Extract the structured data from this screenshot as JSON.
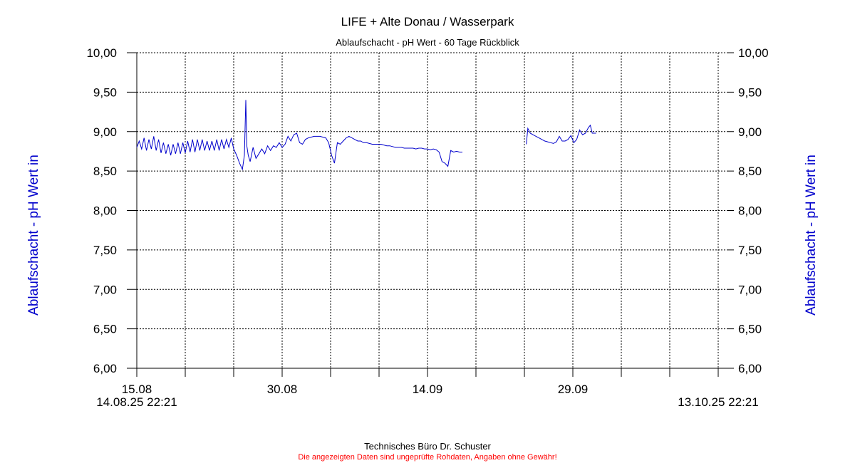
{
  "chart_data": {
    "type": "line",
    "title": "LIFE + Alte Donau / Wasserpark",
    "subtitle": "Ablaufschacht - pH Wert - 60 Tage Rückblick",
    "ylabel": "Ablaufschacht - pH Wert in",
    "ylim": [
      6.0,
      10.0
    ],
    "y_ticks": [
      "10,00",
      "9,50",
      "9,00",
      "8,50",
      "8,00",
      "7,50",
      "7,00",
      "6,50",
      "6,00"
    ],
    "y_tick_values": [
      10.0,
      9.5,
      9.0,
      8.5,
      8.0,
      7.5,
      7.0,
      6.5,
      6.0
    ],
    "xlim_days": [
      0,
      60
    ],
    "x_tick_labels": [
      {
        "label": "15.08",
        "day": 0
      },
      {
        "label": "30.08",
        "day": 15
      },
      {
        "label": "14.09",
        "day": 30
      },
      {
        "label": "29.09",
        "day": 45
      }
    ],
    "x_tick_days": [
      0,
      5,
      10,
      15,
      20,
      25,
      30,
      35,
      40,
      45,
      50,
      55,
      60
    ],
    "x_start_label": "14.08.25 22:21",
    "x_end_label": "13.10.25 22:21",
    "grid": true,
    "line_color": "#0000cc",
    "series": [
      {
        "segments": [
          [
            [
              0.0,
              8.8
            ],
            [
              0.25,
              8.88
            ],
            [
              0.5,
              8.78
            ],
            [
              0.75,
              8.92
            ],
            [
              1.0,
              8.76
            ],
            [
              1.25,
              8.9
            ],
            [
              1.5,
              8.78
            ],
            [
              1.75,
              8.94
            ],
            [
              2.0,
              8.76
            ],
            [
              2.25,
              8.9
            ],
            [
              2.5,
              8.73
            ],
            [
              2.75,
              8.86
            ],
            [
              3.0,
              8.72
            ],
            [
              3.25,
              8.84
            ],
            [
              3.5,
              8.7
            ],
            [
              3.75,
              8.84
            ],
            [
              4.0,
              8.72
            ],
            [
              4.25,
              8.86
            ],
            [
              4.5,
              8.72
            ],
            [
              4.75,
              8.86
            ],
            [
              5.0,
              8.73
            ],
            [
              5.25,
              8.88
            ],
            [
              5.5,
              8.74
            ],
            [
              5.75,
              8.9
            ],
            [
              6.0,
              8.74
            ],
            [
              6.25,
              8.9
            ],
            [
              6.5,
              8.76
            ],
            [
              6.75,
              8.9
            ],
            [
              7.0,
              8.76
            ],
            [
              7.25,
              8.88
            ],
            [
              7.5,
              8.76
            ],
            [
              7.75,
              8.88
            ],
            [
              8.0,
              8.76
            ],
            [
              8.25,
              8.9
            ],
            [
              8.5,
              8.76
            ],
            [
              8.75,
              8.9
            ],
            [
              9.0,
              8.78
            ],
            [
              9.25,
              8.9
            ],
            [
              9.5,
              8.8
            ],
            [
              9.75,
              8.92
            ],
            [
              10.0,
              8.78
            ],
            [
              10.3,
              8.7
            ],
            [
              10.6,
              8.6
            ],
            [
              10.9,
              8.52
            ],
            [
              11.1,
              8.7
            ],
            [
              11.25,
              9.4
            ],
            [
              11.35,
              8.82
            ],
            [
              11.5,
              8.7
            ],
            [
              11.7,
              8.62
            ],
            [
              12.0,
              8.8
            ],
            [
              12.3,
              8.66
            ],
            [
              12.6,
              8.72
            ],
            [
              12.9,
              8.78
            ],
            [
              13.2,
              8.72
            ],
            [
              13.5,
              8.82
            ],
            [
              13.8,
              8.76
            ],
            [
              14.1,
              8.82
            ],
            [
              14.4,
              8.8
            ],
            [
              14.7,
              8.86
            ],
            [
              15.0,
              8.8
            ],
            [
              15.3,
              8.84
            ],
            [
              15.6,
              8.94
            ],
            [
              15.9,
              8.88
            ],
            [
              16.2,
              8.96
            ],
            [
              16.5,
              8.98
            ],
            [
              16.8,
              8.86
            ],
            [
              17.1,
              8.84
            ],
            [
              17.4,
              8.9
            ],
            [
              17.7,
              8.92
            ],
            [
              18.0,
              8.93
            ],
            [
              18.3,
              8.94
            ],
            [
              18.6,
              8.94
            ],
            [
              18.9,
              8.94
            ],
            [
              19.2,
              8.93
            ],
            [
              19.5,
              8.92
            ],
            [
              19.8,
              8.86
            ],
            [
              20.1,
              8.7
            ],
            [
              20.4,
              8.6
            ],
            [
              20.7,
              8.86
            ],
            [
              21.0,
              8.84
            ],
            [
              21.3,
              8.88
            ],
            [
              21.6,
              8.92
            ],
            [
              21.9,
              8.94
            ],
            [
              22.2,
              8.92
            ],
            [
              22.5,
              8.9
            ],
            [
              22.8,
              8.88
            ],
            [
              23.1,
              8.88
            ],
            [
              23.4,
              8.86
            ],
            [
              23.7,
              8.86
            ],
            [
              24.0,
              8.85
            ],
            [
              24.3,
              8.84
            ],
            [
              24.6,
              8.84
            ],
            [
              24.9,
              8.84
            ],
            [
              25.2,
              8.84
            ],
            [
              25.5,
              8.83
            ],
            [
              25.8,
              8.82
            ],
            [
              26.1,
              8.82
            ],
            [
              26.4,
              8.81
            ],
            [
              26.7,
              8.8
            ],
            [
              27.0,
              8.8
            ],
            [
              27.3,
              8.8
            ],
            [
              27.6,
              8.79
            ],
            [
              27.9,
              8.79
            ],
            [
              28.2,
              8.79
            ],
            [
              28.5,
              8.79
            ],
            [
              28.8,
              8.78
            ],
            [
              29.1,
              8.79
            ],
            [
              29.4,
              8.79
            ],
            [
              29.7,
              8.78
            ],
            [
              30.0,
              8.78
            ],
            [
              30.3,
              8.77
            ],
            [
              30.6,
              8.78
            ],
            [
              30.9,
              8.77
            ],
            [
              31.2,
              8.74
            ],
            [
              31.5,
              8.62
            ],
            [
              31.8,
              8.6
            ],
            [
              32.1,
              8.56
            ],
            [
              32.4,
              8.76
            ],
            [
              32.7,
              8.74
            ],
            [
              33.0,
              8.75
            ],
            [
              33.3,
              8.74
            ],
            [
              33.6,
              8.74
            ]
          ],
          [
            [
              40.2,
              8.84
            ],
            [
              40.35,
              9.04
            ],
            [
              40.6,
              8.98
            ],
            [
              40.9,
              8.96
            ],
            [
              41.2,
              8.94
            ],
            [
              41.5,
              8.92
            ],
            [
              41.8,
              8.9
            ],
            [
              42.1,
              8.88
            ],
            [
              42.4,
              8.87
            ],
            [
              42.7,
              8.86
            ],
            [
              43.0,
              8.85
            ],
            [
              43.3,
              8.87
            ],
            [
              43.6,
              8.94
            ],
            [
              43.9,
              8.88
            ],
            [
              44.2,
              8.88
            ],
            [
              44.5,
              8.9
            ],
            [
              44.8,
              8.95
            ],
            [
              45.1,
              8.86
            ],
            [
              45.4,
              8.9
            ],
            [
              45.7,
              9.02
            ],
            [
              46.0,
              8.96
            ],
            [
              46.3,
              8.98
            ],
            [
              46.6,
              9.05
            ],
            [
              46.8,
              9.08
            ],
            [
              47.0,
              8.98
            ],
            [
              47.2,
              8.98
            ],
            [
              47.4,
              8.98
            ]
          ]
        ]
      }
    ]
  },
  "footer": {
    "line1": "Technisches Büro Dr. Schuster",
    "line2": "Die angezeigten Daten sind ungeprüfte Rohdaten, Angaben ohne Gewähr!"
  }
}
